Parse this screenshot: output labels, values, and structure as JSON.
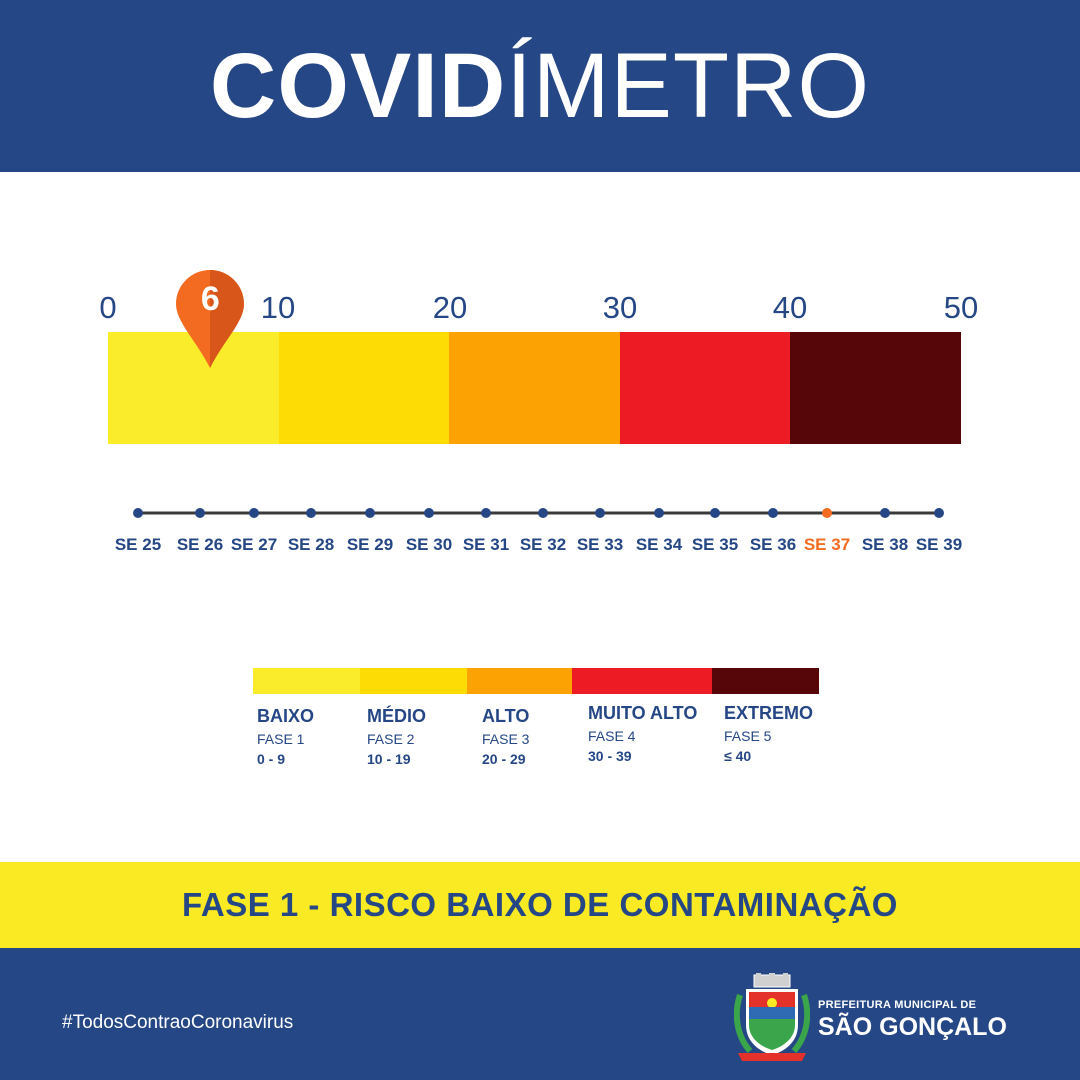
{
  "header": {
    "title_bold": "COVID",
    "title_light": "ÍMETRO"
  },
  "gauge": {
    "current_value": 6,
    "scale_min": 0,
    "scale_max": 50,
    "scale_labels": [
      "0",
      "10",
      "20",
      "30",
      "40",
      "50"
    ],
    "colors": [
      "#fbec2b",
      "#fddc05",
      "#fca303",
      "#ed1c24",
      "#560509"
    ]
  },
  "timeline": {
    "weeks": [
      "SE 25",
      "SE 26",
      "SE 27",
      "SE 28",
      "SE 29",
      "SE 30",
      "SE 31",
      "SE 32",
      "SE 33",
      "SE 34",
      "SE 35",
      "SE 36",
      "SE 37",
      "SE 38",
      "SE 39"
    ],
    "current_week": "SE 37",
    "current_color": "#f26b21",
    "line_color": "#3a3a3a",
    "dot_color": "#264786"
  },
  "legend": [
    {
      "name": "BAIXO",
      "phase": "FASE 1",
      "range": "0 - 9",
      "color": "#fbec2b"
    },
    {
      "name": "MÉDIO",
      "phase": "FASE 2",
      "range": "10 - 19",
      "color": "#fddc05"
    },
    {
      "name": "ALTO",
      "phase": "FASE 3",
      "range": "20 - 29",
      "color": "#fca303"
    },
    {
      "name": "MUITO ALTO",
      "phase": "FASE 4",
      "range": "30 - 39",
      "color": "#ed1c24"
    },
    {
      "name": "EXTREMO",
      "phase": "FASE 5",
      "range": "≤ 40",
      "color": "#560509"
    }
  ],
  "banner": {
    "text": "FASE 1 - RISCO BAIXO DE CONTAMINAÇÃO"
  },
  "footer": {
    "hashtag": "#TodosContraoCoronavirus",
    "org_line1": "PREFEITURA MUNICIPAL DE",
    "org_line2": "SÃO GONÇALO",
    "crest_icon": "city-crest-icon"
  },
  "colors": {
    "brand_blue": "#264786",
    "accent_orange": "#f26b21",
    "banner_yellow": "#f9ea23"
  }
}
